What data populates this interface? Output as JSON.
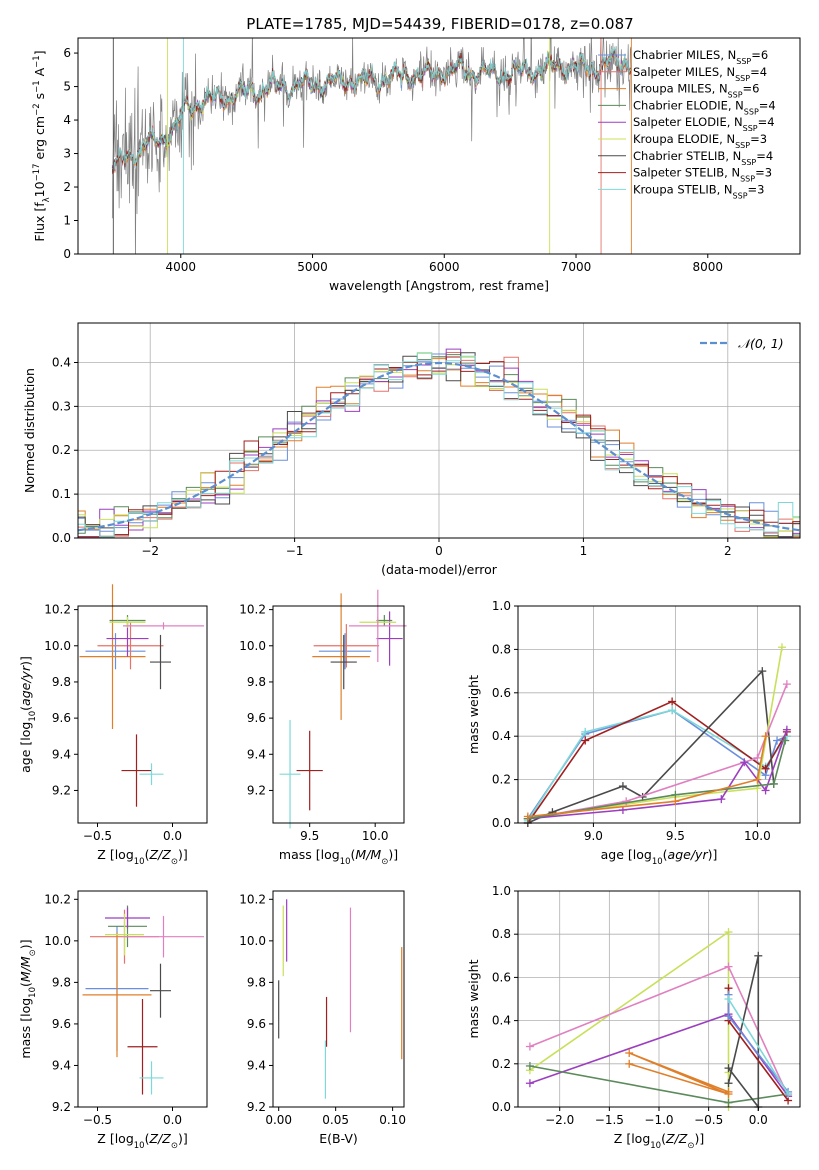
{
  "figure": {
    "title": "PLATE=1785, MJD=54439, FIBERID=0178, z=0.087"
  },
  "chart_data": [
    {
      "id": "spectrum",
      "type": "line",
      "title": "PLATE=1785, MJD=54439, FIBERID=0178, z=0.087",
      "xlabel": "wavelength [Angstrom, rest frame]",
      "ylabel": "Flux [f_λ 10^-17 erg cm^-2 s^-1 A^-1]",
      "xlim": [
        3220,
        8700
      ],
      "ylim": [
        0,
        6.45
      ],
      "xticks": [
        4000,
        5000,
        6000,
        7000,
        8000
      ],
      "yticks": [
        0,
        1,
        2,
        3,
        4,
        5,
        6
      ],
      "legend_position": "top-right",
      "legend": [
        {
          "name": "Chabrier MILES, N_SSP=6",
          "color": "#6a8fdc"
        },
        {
          "name": "Salpeter MILES, N_SSP=4",
          "color": "#e5736a"
        },
        {
          "name": "Kroupa MILES, N_SSP=6",
          "color": "#e07f2a"
        },
        {
          "name": "Chabrier ELODIE, N_SSP=4",
          "color": "#5b8a5b"
        },
        {
          "name": "Salpeter ELODIE, N_SSP=4",
          "color": "#9b3fbf"
        },
        {
          "name": "Kroupa ELODIE, N_SSP=3",
          "color": "#c8e05a"
        },
        {
          "name": "Chabrier STELIB, N_SSP=4",
          "color": "#4a4a4a"
        },
        {
          "name": "Salpeter STELIB, N_SSP=3",
          "color": "#a02020"
        },
        {
          "name": "Kroupa STELIB, N_SSP=3",
          "color": "#7fd8d8"
        }
      ],
      "data_color": "#808080",
      "continuum": {
        "x": [
          3480,
          3550,
          3650,
          3750,
          3850,
          3950,
          4050,
          4150,
          4300,
          4500,
          4700,
          4900,
          5100,
          5300,
          5500,
          5700,
          5900,
          6100,
          6300,
          6500,
          6700,
          6900,
          7100,
          7300,
          7420
        ],
        "y": [
          2.6,
          2.75,
          3.0,
          3.3,
          3.4,
          3.75,
          4.4,
          4.55,
          4.65,
          4.8,
          5.0,
          5.05,
          5.1,
          5.15,
          5.2,
          5.3,
          5.35,
          5.5,
          5.4,
          5.4,
          5.5,
          5.6,
          5.55,
          5.7,
          5.7
        ]
      }
    },
    {
      "id": "residuals",
      "type": "line",
      "xlabel": "(data-model)/error",
      "ylabel": "Normed distribution",
      "xlim": [
        -2.5,
        2.5
      ],
      "ylim": [
        0,
        0.49
      ],
      "xticks": [
        -2,
        -1,
        0,
        1,
        2
      ],
      "yticks": [
        0.0,
        0.1,
        0.2,
        0.3,
        0.4
      ],
      "grid": true,
      "legend": [
        {
          "name": "𝒩(0, 1)",
          "color": "#5b8fd0"
        }
      ],
      "legend_position": "top-right"
    },
    {
      "id": "age-vs-Z",
      "type": "scatter",
      "xlabel": "Z [log10(Z/Z⊙)]",
      "ylabel": "age [log10(age/yr)]",
      "xlim": [
        -0.63,
        0.23
      ],
      "ylim": [
        9.02,
        10.22
      ],
      "xticks": [
        -0.5,
        0.0
      ],
      "yticks": [
        9.2,
        9.4,
        9.6,
        9.8,
        10.0,
        10.2
      ],
      "points": [
        {
          "color": "#6a8fdc",
          "x": -0.38,
          "xerr": 0.2,
          "y": 9.97,
          "yerr": 0.1
        },
        {
          "color": "#e5736a",
          "x": -0.28,
          "xerr": 0.22,
          "y": 10.0,
          "yerr": 0.13
        },
        {
          "color": "#e07f2a",
          "x": -0.4,
          "xerr": 0.22,
          "y": 9.94,
          "yerr": 0.4
        },
        {
          "color": "#5b8a5b",
          "x": -0.3,
          "xerr": 0.12,
          "y": 10.14,
          "yerr": 0.03
        },
        {
          "color": "#9b3fbf",
          "x": -0.3,
          "xerr": 0.14,
          "y": 10.04,
          "yerr": 0.1
        },
        {
          "color": "#c8e05a",
          "x": -0.3,
          "xerr": 0.12,
          "y": 10.13,
          "yerr": 0.03
        },
        {
          "color": "#4a4a4a",
          "x": -0.08,
          "xerr": 0.07,
          "y": 9.91,
          "yerr": 0.15
        },
        {
          "color": "#a02020",
          "x": -0.24,
          "xerr": 0.1,
          "y": 9.31,
          "yerr": 0.2
        },
        {
          "color": "#7fd8d8",
          "x": -0.14,
          "xerr": 0.08,
          "y": 9.29,
          "yerr": 0.06
        },
        {
          "color": "#e080c0",
          "x": -0.06,
          "xerr": 0.27,
          "y": 10.11,
          "yerr": 0.02
        }
      ]
    },
    {
      "id": "age-vs-mass",
      "type": "scatter",
      "xlabel": "mass [log10(M/M⊙)]",
      "ylabel": "",
      "xlim": [
        9.22,
        10.22
      ],
      "ylim": [
        9.02,
        10.22
      ],
      "xticks": [
        9.5,
        10.0
      ],
      "yticks": [
        9.2,
        9.4,
        9.6,
        9.8,
        10.0,
        10.2
      ],
      "points": [
        {
          "color": "#6a8fdc",
          "x": 9.77,
          "xerr": 0.2,
          "y": 9.97,
          "yerr": 0.1
        },
        {
          "color": "#e5736a",
          "x": 9.78,
          "xerr": 0.25,
          "y": 10.0,
          "yerr": 0.12
        },
        {
          "color": "#e07f2a",
          "x": 9.74,
          "xerr": 0.22,
          "y": 9.94,
          "yerr": 0.35
        },
        {
          "color": "#5b8a5b",
          "x": 10.07,
          "xerr": 0.06,
          "y": 10.14,
          "yerr": 0.03
        },
        {
          "color": "#9b3fbf",
          "x": 10.11,
          "xerr": 0.1,
          "y": 10.04,
          "yerr": 0.15
        },
        {
          "color": "#c8e05a",
          "x": 10.02,
          "xerr": 0.14,
          "y": 10.13,
          "yerr": 0.03
        },
        {
          "color": "#4a4a4a",
          "x": 9.76,
          "xerr": 0.1,
          "y": 9.91,
          "yerr": 0.15
        },
        {
          "color": "#a02020",
          "x": 9.5,
          "xerr": 0.1,
          "y": 9.31,
          "yerr": 0.22
        },
        {
          "color": "#7fd8d8",
          "x": 9.35,
          "xerr": 0.08,
          "y": 9.29,
          "yerr": 0.3
        },
        {
          "color": "#e080c0",
          "x": 10.02,
          "xerr": 0.22,
          "y": 10.11,
          "yerr": 0.2
        }
      ]
    },
    {
      "id": "massweight-vs-age",
      "type": "line",
      "xlabel": "age [log10(age/yr)]",
      "ylabel": "mass weight",
      "xlim": [
        8.54,
        10.26
      ],
      "ylim": [
        0,
        1.0
      ],
      "xticks": [
        9.0,
        9.5,
        10.0
      ],
      "yticks": [
        0.0,
        0.2,
        0.4,
        0.6,
        0.8,
        1.0
      ],
      "grid": true,
      "series": [
        {
          "color": "#6a8fdc",
          "x": [
            8.6,
            8.95,
            9.48,
            10.05,
            10.12,
            10.18
          ],
          "y": [
            0.02,
            0.41,
            0.52,
            0.22,
            0.38,
            0.4
          ]
        },
        {
          "color": "#7fd8d8",
          "x": [
            8.6,
            8.95,
            9.48,
            10.05,
            10.18
          ],
          "y": [
            0.01,
            0.42,
            0.52,
            0.26,
            0.4
          ]
        },
        {
          "color": "#a02020",
          "x": [
            8.6,
            8.95,
            9.48,
            10.05,
            10.18
          ],
          "y": [
            0.0,
            0.38,
            0.56,
            0.25,
            0.42
          ]
        },
        {
          "color": "#4a4a4a",
          "x": [
            8.6,
            8.75,
            9.18,
            9.3,
            10.03,
            10.1
          ],
          "y": [
            0.0,
            0.05,
            0.17,
            0.12,
            0.7,
            0.18
          ]
        },
        {
          "color": "#c8e05a",
          "x": [
            8.6,
            9.5,
            10.0,
            10.15
          ],
          "y": [
            0.02,
            0.12,
            0.16,
            0.81
          ]
        },
        {
          "color": "#e080c0",
          "x": [
            8.6,
            9.2,
            10.0,
            10.18
          ],
          "y": [
            0.02,
            0.1,
            0.3,
            0.64
          ]
        },
        {
          "color": "#9b3fbf",
          "x": [
            8.6,
            9.18,
            9.78,
            9.92,
            10.05,
            10.18
          ],
          "y": [
            0.02,
            0.06,
            0.11,
            0.28,
            0.15,
            0.43
          ]
        },
        {
          "color": "#5b8a5b",
          "x": [
            8.6,
            9.5,
            10.1,
            10.17
          ],
          "y": [
            0.02,
            0.13,
            0.18,
            0.38
          ]
        },
        {
          "color": "#e07f2a",
          "x": [
            8.6,
            9.5,
            10.0,
            10.05
          ],
          "y": [
            0.03,
            0.1,
            0.2,
            0.4
          ]
        }
      ]
    },
    {
      "id": "mass-vs-Z",
      "type": "scatter",
      "xlabel": "Z [log10(Z/Z⊙)]",
      "ylabel": "mass [log10(M/M⊙)]",
      "xlim": [
        -0.63,
        0.23
      ],
      "ylim": [
        9.2,
        10.24
      ],
      "xticks": [
        -0.5,
        0.0
      ],
      "yticks": [
        9.2,
        9.4,
        9.6,
        9.8,
        10.0,
        10.2
      ],
      "points": [
        {
          "color": "#6a8fdc",
          "x": -0.37,
          "xerr": 0.21,
          "y": 9.77,
          "yerr": 0.3
        },
        {
          "color": "#e5736a",
          "x": -0.32,
          "xerr": 0.23,
          "y": 10.02,
          "yerr": 0.13
        },
        {
          "color": "#e07f2a",
          "x": -0.37,
          "xerr": 0.23,
          "y": 9.74,
          "yerr": 0.3
        },
        {
          "color": "#5b8a5b",
          "x": -0.3,
          "xerr": 0.13,
          "y": 10.07,
          "yerr": 0.1
        },
        {
          "color": "#9b3fbf",
          "x": -0.3,
          "xerr": 0.15,
          "y": 10.11,
          "yerr": 0.05
        },
        {
          "color": "#c8e05a",
          "x": -0.32,
          "xerr": 0.13,
          "y": 10.03,
          "yerr": 0.1
        },
        {
          "color": "#4a4a4a",
          "x": -0.08,
          "xerr": 0.07,
          "y": 9.76,
          "yerr": 0.13
        },
        {
          "color": "#a02020",
          "x": -0.2,
          "xerr": 0.1,
          "y": 9.49,
          "yerr": 0.23
        },
        {
          "color": "#7fd8d8",
          "x": -0.14,
          "xerr": 0.08,
          "y": 9.34,
          "yerr": 0.08
        },
        {
          "color": "#e080c0",
          "x": -0.06,
          "xerr": 0.27,
          "y": 10.02,
          "yerr": 0.1
        }
      ]
    },
    {
      "id": "mass-vs-EBV",
      "type": "scatter",
      "xlabel": "E(B-V)",
      "ylabel": "",
      "xlim": [
        -0.005,
        0.11
      ],
      "ylim": [
        9.2,
        10.24
      ],
      "xticks": [
        0.0,
        0.05,
        0.1
      ],
      "yticks": [
        9.2,
        9.4,
        9.6,
        9.8,
        10.0,
        10.2
      ],
      "points": [
        {
          "color": "#4a4a4a",
          "x": 0.0,
          "y": 9.67,
          "yerr": 0.14
        },
        {
          "color": "#c8e05a",
          "x": 0.004,
          "y": 10.0,
          "yerr": 0.17
        },
        {
          "color": "#9b3fbf",
          "x": 0.007,
          "y": 10.05,
          "yerr": 0.15
        },
        {
          "color": "#a02020",
          "x": 0.042,
          "y": 9.61,
          "yerr": 0.12
        },
        {
          "color": "#7fd8d8",
          "x": 0.041,
          "y": 9.38,
          "yerr": 0.14
        },
        {
          "color": "#e080c0",
          "x": 0.063,
          "y": 9.86,
          "yerr": 0.3
        },
        {
          "color": "#e07f2a",
          "x": 0.108,
          "y": 9.7,
          "yerr": 0.27
        }
      ]
    },
    {
      "id": "massweight-vs-Z",
      "type": "line",
      "xlabel": "Z [log10(Z/Z⊙)]",
      "ylabel": "mass weight",
      "xlim": [
        -2.42,
        0.42
      ],
      "ylim": [
        0,
        1.0
      ],
      "xticks": [
        -2.0,
        -1.5,
        -1.0,
        -0.5,
        0.0
      ],
      "yticks": [
        0.0,
        0.2,
        0.4,
        0.6,
        0.8,
        1.0
      ],
      "grid": true,
      "series": [
        {
          "color": "#c8e05a",
          "x": [
            -2.3,
            -0.3,
            -0.3,
            -0.3
          ],
          "y": [
            0.17,
            0.81,
            0.0,
            0.16
          ]
        },
        {
          "color": "#e080c0",
          "x": [
            -2.3,
            -0.3,
            0.3
          ],
          "y": [
            0.28,
            0.65,
            0.05
          ]
        },
        {
          "color": "#9b3fbf",
          "x": [
            -2.3,
            -0.3,
            0.3
          ],
          "y": [
            0.11,
            0.43,
            0.05
          ]
        },
        {
          "color": "#5b8a5b",
          "x": [
            -2.3,
            -0.3,
            0.3
          ],
          "y": [
            0.19,
            0.02,
            0.06
          ]
        },
        {
          "color": "#e07f2a",
          "x": [
            -1.3,
            -0.3,
            -1.3,
            -0.3
          ],
          "y": [
            0.2,
            0.06,
            0.25,
            0.07
          ]
        },
        {
          "color": "#4a4a4a",
          "x": [
            -0.3,
            0.0,
            0.0,
            -0.3
          ],
          "y": [
            0.11,
            0.7,
            0.0,
            0.18
          ]
        },
        {
          "color": "#a02020",
          "x": [
            -0.3,
            -0.3,
            0.3
          ],
          "y": [
            0.55,
            0.4,
            0.03
          ]
        },
        {
          "color": "#6a8fdc",
          "x": [
            -0.3,
            -0.3,
            0.3
          ],
          "y": [
            0.52,
            0.42,
            0.07
          ]
        },
        {
          "color": "#7fd8d8",
          "x": [
            -0.3,
            0.3
          ],
          "y": [
            0.5,
            0.06
          ]
        }
      ]
    }
  ]
}
